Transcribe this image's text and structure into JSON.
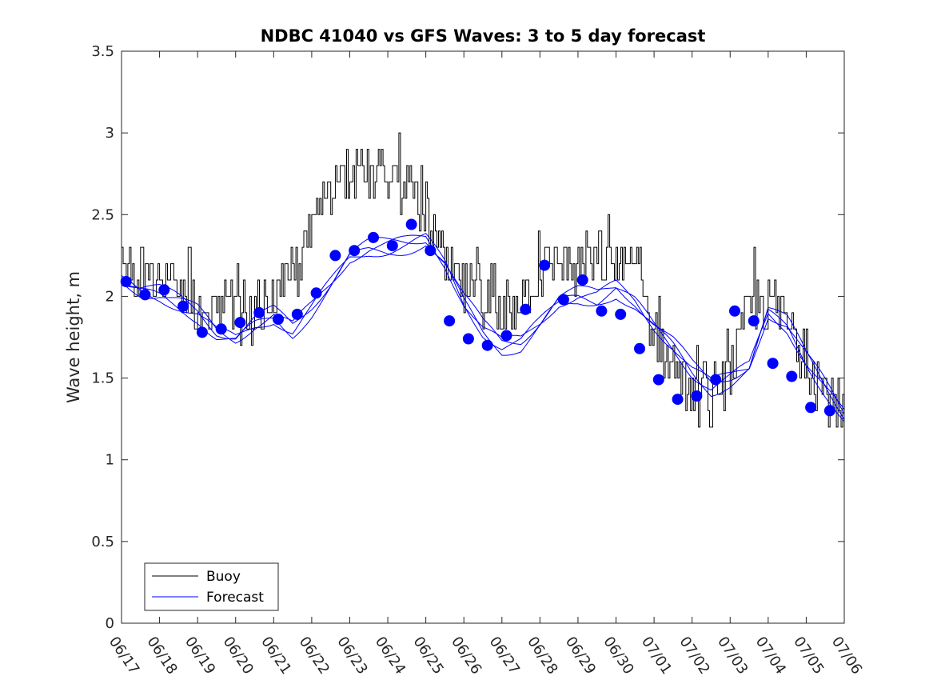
{
  "chart_data": {
    "type": "line",
    "title": "NDBC 41040 vs GFS Waves: 3 to 5 day forecast",
    "xlabel": "",
    "ylabel": "Wave height, m",
    "xlim": [
      "06/17",
      "07/06"
    ],
    "ylim": [
      0,
      3.5
    ],
    "grid": false,
    "legend_position": "bottom-left",
    "x_tick_labels": [
      "06/17",
      "06/18",
      "06/19",
      "06/20",
      "06/21",
      "06/22",
      "06/23",
      "06/24",
      "06/25",
      "06/26",
      "06/27",
      "06/28",
      "06/29",
      "06/30",
      "07/01",
      "07/02",
      "07/03",
      "07/04",
      "07/05",
      "07/06"
    ],
    "y_tick_labels": [
      "0",
      "0.5",
      "1",
      "1.5",
      "2",
      "2.5",
      "3",
      "3.5"
    ],
    "y_tick_values": [
      0,
      0.5,
      1,
      1.5,
      2,
      2.5,
      3,
      3.5
    ],
    "colors": {
      "buoy": "#000000",
      "forecast": "#0000ff"
    },
    "series": [
      {
        "name": "Buoy",
        "style": "stepped line with hourly noise",
        "x": [
          "06/17 00:00",
          "06/17 12:00",
          "06/18 00:00",
          "06/18 12:00",
          "06/19 00:00",
          "06/19 12:00",
          "06/20 00:00",
          "06/20 12:00",
          "06/21 00:00",
          "06/21 12:00",
          "06/22 00:00",
          "06/22 12:00",
          "06/23 00:00",
          "06/23 12:00",
          "06/24 00:00",
          "06/24 12:00",
          "06/25 00:00",
          "06/25 12:00",
          "06/26 00:00",
          "06/26 12:00",
          "06/27 00:00",
          "06/27 12:00",
          "06/28 00:00",
          "06/28 12:00",
          "06/29 00:00",
          "06/29 12:00",
          "06/30 00:00",
          "06/30 12:00",
          "07/01 00:00",
          "07/01 12:00",
          "07/02 00:00",
          "07/02 12:00",
          "07/03 00:00",
          "07/03 12:00",
          "07/04 00:00",
          "07/04 12:00",
          "07/05 00:00",
          "07/05 12:00",
          "07/06 00:00"
        ],
        "values": [
          2.1,
          2.1,
          2.1,
          2.1,
          1.9,
          1.9,
          1.9,
          1.9,
          2.0,
          2.1,
          2.4,
          2.7,
          2.8,
          2.75,
          2.7,
          2.7,
          2.5,
          2.2,
          2.05,
          2.0,
          1.85,
          2.0,
          2.15,
          2.25,
          2.15,
          2.2,
          2.2,
          2.2,
          1.75,
          1.6,
          1.4,
          1.35,
          1.55,
          1.95,
          1.95,
          1.85,
          1.6,
          1.4,
          1.25
        ]
      },
      {
        "name": "Forecast",
        "style": "several overlapping forecast runs with markers at run points",
        "x": [
          "06/17 00:00",
          "06/17 12:00",
          "06/18 00:00",
          "06/18 12:00",
          "06/19 00:00",
          "06/19 12:00",
          "06/20 00:00",
          "06/20 12:00",
          "06/21 00:00",
          "06/21 12:00",
          "06/22 00:00",
          "06/22 12:00",
          "06/23 00:00",
          "06/23 12:00",
          "06/24 00:00",
          "06/24 12:00",
          "06/25 00:00",
          "06/25 12:00",
          "06/26 00:00",
          "06/26 12:00",
          "06/27 00:00",
          "06/27 12:00",
          "06/28 00:00",
          "06/28 12:00",
          "06/29 00:00",
          "06/29 12:00",
          "06/30 00:00",
          "06/30 12:00",
          "07/01 00:00",
          "07/01 12:00",
          "07/02 00:00",
          "07/02 12:00",
          "07/03 00:00",
          "07/03 12:00",
          "07/04 00:00",
          "07/04 12:00",
          "07/05 00:00",
          "07/05 12:00",
          "07/06 00:00"
        ],
        "values": [
          2.09,
          2.03,
          2.01,
          1.96,
          1.9,
          1.78,
          1.74,
          1.83,
          1.88,
          1.8,
          1.93,
          2.08,
          2.24,
          2.29,
          2.3,
          2.32,
          2.35,
          2.2,
          1.97,
          1.8,
          1.7,
          1.72,
          1.84,
          1.97,
          2.0,
          1.99,
          2.05,
          1.96,
          1.82,
          1.7,
          1.55,
          1.45,
          1.5,
          1.57,
          1.9,
          1.82,
          1.62,
          1.45,
          1.27
        ],
        "markers": {
          "x": [
            "06/17 00:00",
            "06/17 12:00",
            "06/18 00:00",
            "06/18 12:00",
            "06/19 00:00",
            "06/19 12:00",
            "06/20 00:00",
            "06/20 12:00",
            "06/21 00:00",
            "06/21 12:00",
            "06/22 00:00",
            "06/22 12:00",
            "06/23 00:00",
            "06/23 12:00",
            "06/24 00:00",
            "06/24 12:00",
            "06/25 00:00",
            "06/25 12:00",
            "06/26 00:00",
            "06/26 12:00",
            "06/27 00:00",
            "06/27 12:00",
            "06/28 00:00",
            "06/28 12:00",
            "06/29 00:00",
            "06/29 12:00",
            "06/30 00:00",
            "06/30 12:00",
            "07/01 00:00",
            "07/01 12:00",
            "07/02 00:00",
            "07/02 12:00",
            "07/03 00:00",
            "07/03 12:00",
            "07/04 00:00",
            "07/04 12:00",
            "07/05 00:00",
            "07/05 12:00"
          ],
          "values": [
            2.09,
            2.01,
            2.04,
            1.94,
            1.78,
            1.8,
            1.84,
            1.9,
            1.86,
            1.89,
            2.02,
            2.25,
            2.28,
            2.36,
            2.31,
            2.44,
            2.28,
            1.85,
            1.74,
            1.7,
            1.76,
            1.92,
            2.19,
            1.98,
            2.1,
            1.91,
            1.89,
            1.68,
            1.49,
            1.37,
            1.39,
            1.49,
            1.91,
            1.85,
            1.59,
            1.51,
            1.32,
            1.3
          ]
        }
      }
    ]
  }
}
